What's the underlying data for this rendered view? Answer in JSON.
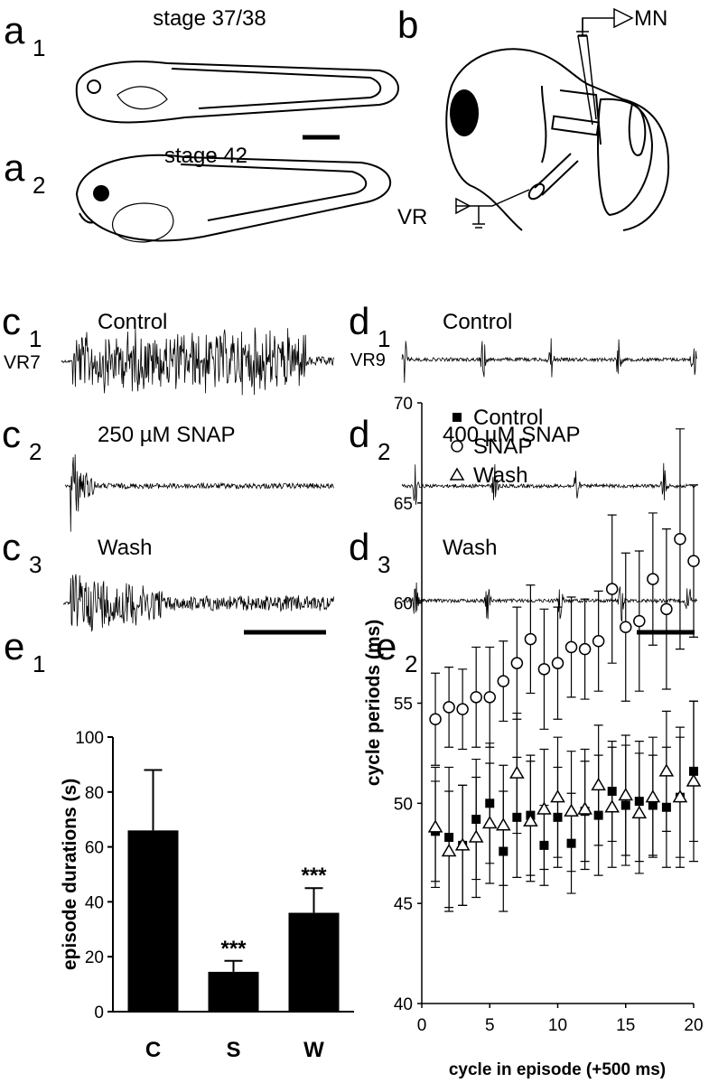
{
  "panels": {
    "a1": {
      "letter": "a",
      "sub": "1",
      "caption": "stage 37/38"
    },
    "a2": {
      "letter": "a",
      "sub": "2",
      "caption": "stage 42"
    },
    "b": {
      "letter": "b",
      "labels": [
        "MN",
        "VR"
      ]
    },
    "c1": {
      "letter": "c",
      "sub": "1",
      "caption": "Control",
      "trace": "VR7"
    },
    "c2": {
      "letter": "c",
      "sub": "2",
      "caption": "250 µM SNAP"
    },
    "c3": {
      "letter": "c",
      "sub": "3",
      "caption": "Wash"
    },
    "d1": {
      "letter": "d",
      "sub": "1",
      "caption": "Control",
      "trace": "VR9"
    },
    "d2": {
      "letter": "d",
      "sub": "2",
      "caption": "400 µM SNAP"
    },
    "d3": {
      "letter": "d",
      "sub": "3",
      "caption": "Wash"
    },
    "e1": {
      "letter": "e",
      "sub": "1"
    },
    "e2": {
      "letter": "e",
      "sub": "2"
    }
  },
  "chart_data": [
    {
      "type": "bar",
      "ylabel": "episode durations (s)",
      "categories": [
        "C",
        "S",
        "W"
      ],
      "values": [
        66,
        14.5,
        36
      ],
      "errors": [
        22,
        4,
        9
      ],
      "annotations": [
        null,
        "***",
        "***"
      ],
      "color": "#000000",
      "ylim": [
        0,
        100
      ],
      "yticks": [
        0,
        20,
        40,
        60,
        80,
        100
      ]
    },
    {
      "type": "scatter",
      "xlabel": "cycle in episode (+500 ms)",
      "ylabel": "cycle periods (ms)",
      "x": [
        1,
        2,
        3,
        4,
        5,
        6,
        7,
        8,
        9,
        10,
        11,
        12,
        13,
        14,
        15,
        16,
        17,
        18,
        19,
        20
      ],
      "xlim": [
        0,
        20
      ],
      "xticks": [
        0,
        5,
        10,
        15,
        20
      ],
      "ylim": [
        40,
        70
      ],
      "yticks": [
        40,
        45,
        50,
        55,
        60,
        65,
        70
      ],
      "legend": "upper left",
      "series": [
        {
          "name": "Control",
          "marker": "square",
          "color": "#000000",
          "values": [
            48.6,
            48.3,
            47.9,
            49.2,
            50,
            47.6,
            49.3,
            49.4,
            47.9,
            49.3,
            48,
            49.6,
            49.4,
            50.6,
            49.9,
            50.1,
            49.9,
            49.8,
            50.3,
            51.6
          ],
          "errors": [
            2.5,
            3.5,
            3,
            3,
            3,
            3,
            3,
            3,
            2,
            2.5,
            2.5,
            2.5,
            3,
            2.5,
            3,
            3,
            2.5,
            3,
            3,
            3.5
          ]
        },
        {
          "name": "SNAP",
          "marker": "circle",
          "color": "#000000",
          "values": [
            54.2,
            54.8,
            54.7,
            55.3,
            55.3,
            56.1,
            57,
            58.2,
            56.7,
            57,
            57.8,
            57.7,
            58.1,
            60.7,
            58.8,
            59.1,
            61.2,
            59.7,
            63.2,
            62.1
          ],
          "errors": [
            2.3,
            2,
            2,
            2.5,
            2.5,
            2,
            2.8,
            2.7,
            3,
            2.8,
            2.5,
            2.5,
            2.5,
            3.7,
            3.7,
            3.5,
            3.3,
            4,
            5.5,
            3.8
          ]
        },
        {
          "name": "Wash",
          "marker": "triangle",
          "color": "#000000",
          "values": [
            48.8,
            47.6,
            47.9,
            48.3,
            49,
            48.9,
            51.5,
            49.1,
            49.7,
            50.3,
            49.6,
            49.7,
            50.9,
            49.8,
            50.4,
            49.5,
            50.3,
            51.6,
            50.3,
            51.1
          ],
          "errors": [
            3,
            3,
            3,
            3,
            3,
            3,
            3,
            3,
            3,
            3,
            3,
            3,
            3,
            3,
            3,
            3,
            3,
            3,
            3.5,
            4
          ]
        }
      ]
    }
  ]
}
